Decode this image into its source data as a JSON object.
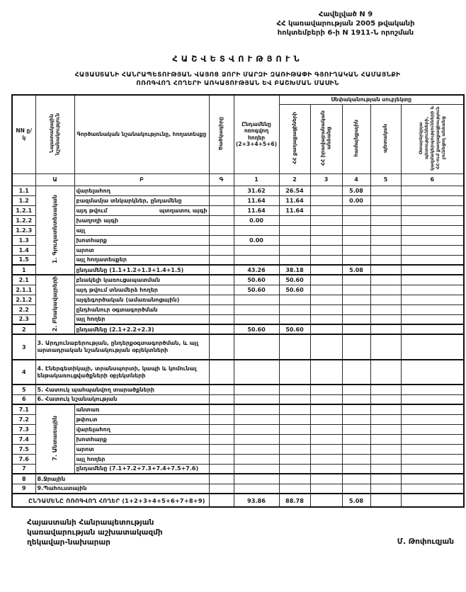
{
  "doc": {
    "appendix": {
      "line1": "Հավելված N 9",
      "line2": "ՀՀ կառավարության 2005 թվականի",
      "line3": "հոկտեմբերի 6-ի N 1911-Ն որոշման"
    },
    "title": "ՀԱՇՎԵՏՎՈՒԹՅՈՒՆ",
    "subtitle1": "ՀԱՅԱՍՏԱՆԻ ՀԱՆՐԱՊԵՏՈՒԹՅԱՆ ՎԱՅՈՑ ՁՈՐԻ ՄԱՐԶԻ ԶԱՌԻԹԱՓԻ ԳՅՈՒՂԱԿԱՆ ՀԱՄԱՅՆՔԻ",
    "subtitle2": "ՈՌՈԳՎՈՂ ՀՈՂԵՐԻ ԱՌԿԱՅՈՒԹՅԱՆ ԵՎ ԲԱՇԽՄԱՆ ՄԱՍԻՆ"
  },
  "table": {
    "head": {
      "nn": "NN ը/կ",
      "purpose": "Նպատակային նշանակություն",
      "functional": "Գործառնական նշանակությունը, հողատեսքը",
      "code": "Ծածկագիրը",
      "total": "Ընդամենը ոռոգվող հողեր (2+3+4+5+6)",
      "ownership": "Սեփականության սուբյեկտը",
      "owner_citizens": "ՀՀ քաղաքացիների",
      "owner_legal": "ՀՀ իրավաբանական անձանց",
      "owner_community": "համայնքային",
      "owner_state": "պետական",
      "owner_foreign": "Օտարերկրյա պետությունների, կազմակերպությունների և ՀՀ-ում քաղաքացիություն չունեցող անձանց",
      "letters": {
        "a": "Ա",
        "b": "Բ",
        "g": "Գ",
        "n1": "1",
        "n2": "2",
        "n3": "3",
        "n4": "4",
        "n5": "5",
        "n6": "6"
      }
    },
    "rows": [
      {
        "nn": "1.1",
        "group": "1. Գյուղատնտեսական",
        "label": "վարելահող",
        "v1": "31.62",
        "v2": "26.54",
        "v4": "5.08"
      },
      {
        "nn": "1.2",
        "label": "բազմամյա տնկարկներ, ընդամենը",
        "v1": "11.64",
        "v2": "11.64",
        "v4": "0.00"
      },
      {
        "nn": "1.2.1",
        "label_left": "այդ թվում",
        "label_right": "պտղատու այգի",
        "v1": "11.64",
        "v2": "11.64"
      },
      {
        "nn": "1.2.2",
        "label": "խաղողի այգի",
        "v1": "0.00"
      },
      {
        "nn": "1.2.3",
        "label": "այլ"
      },
      {
        "nn": "1.3",
        "label": "խոտհարք",
        "v1": "0.00"
      },
      {
        "nn": "1.4",
        "label": "արոտ"
      },
      {
        "nn": "1.5",
        "label": "այլ հողատեսքեր"
      },
      {
        "nn": "1",
        "label": "ընդամենը (1.1+1.2+1.3+1.4+1.5)",
        "v1": "43.26",
        "v2": "38.18",
        "v4": "5.08"
      },
      {
        "nn": "2.1",
        "group": "2. Բնակավայրերի",
        "label": "բնակելի կառուցապատման",
        "v1": "50.60",
        "v2": "50.60"
      },
      {
        "nn": "2.1.1",
        "label": "այդ թվում տնամերձ հողեր",
        "v1": "50.60",
        "v2": "50.60"
      },
      {
        "nn": "2.1.2",
        "label": "այգեգործական (ամառանոցային)"
      },
      {
        "nn": "2.2",
        "label": "ընդհանուր օգտագործման"
      },
      {
        "nn": "2.3",
        "label": "այլ հողեր"
      },
      {
        "nn": "2",
        "label": "ընդամենը (2.1+2.2+2.3)",
        "v1": "50.60",
        "v2": "50.60"
      },
      {
        "nn": "3",
        "label": "3. Արդյունաբերության, ընդերքօգտագործման, և այլ արտադրական նշանակության օբյեկտների"
      },
      {
        "nn": "4",
        "label": "4. Էներգետիկայի, տրանսպորտի, կապի և կոմունալ ենթակառուցվածքների օբյեկտների"
      },
      {
        "nn": "5",
        "label": "5. Հատուկ պահպանվող տարածքների"
      },
      {
        "nn": "6",
        "label": "6. Հատուկ նշանակության"
      },
      {
        "nn": "7.1",
        "group": "7. Անտառային",
        "label": "անտառ"
      },
      {
        "nn": "7.2",
        "label": "թփուտ"
      },
      {
        "nn": "7.3",
        "label": "վարելահող"
      },
      {
        "nn": "7.4",
        "label": "խոտհարք"
      },
      {
        "nn": "7.5",
        "label": "արոտ"
      },
      {
        "nn": "7.6",
        "label": "այլ հողեր"
      },
      {
        "nn": "7",
        "label": "ընդամենը (7.1+7.2+7.3+7.4+7.5+7.6)"
      },
      {
        "nn": "8",
        "label": "8.Ջրային"
      },
      {
        "nn": "9",
        "label": "9.Պահուստային"
      }
    ],
    "total": {
      "label": "ԸՆԴԱՄԵՆԸ ՈՌՈԳՎՈՂ ՀՈՂԵՐ (1+2+3+4+5+6+7+8+9)",
      "v1": "93.86",
      "v2": "88.78",
      "v4": "5.08"
    }
  },
  "signature": {
    "line1": "Հայաստանի Հանրապետության",
    "line2": "կառավարության աշխատակազմի",
    "line3": "ղեկավար-նախարար",
    "name": "Մ. Թոփուզյան"
  }
}
